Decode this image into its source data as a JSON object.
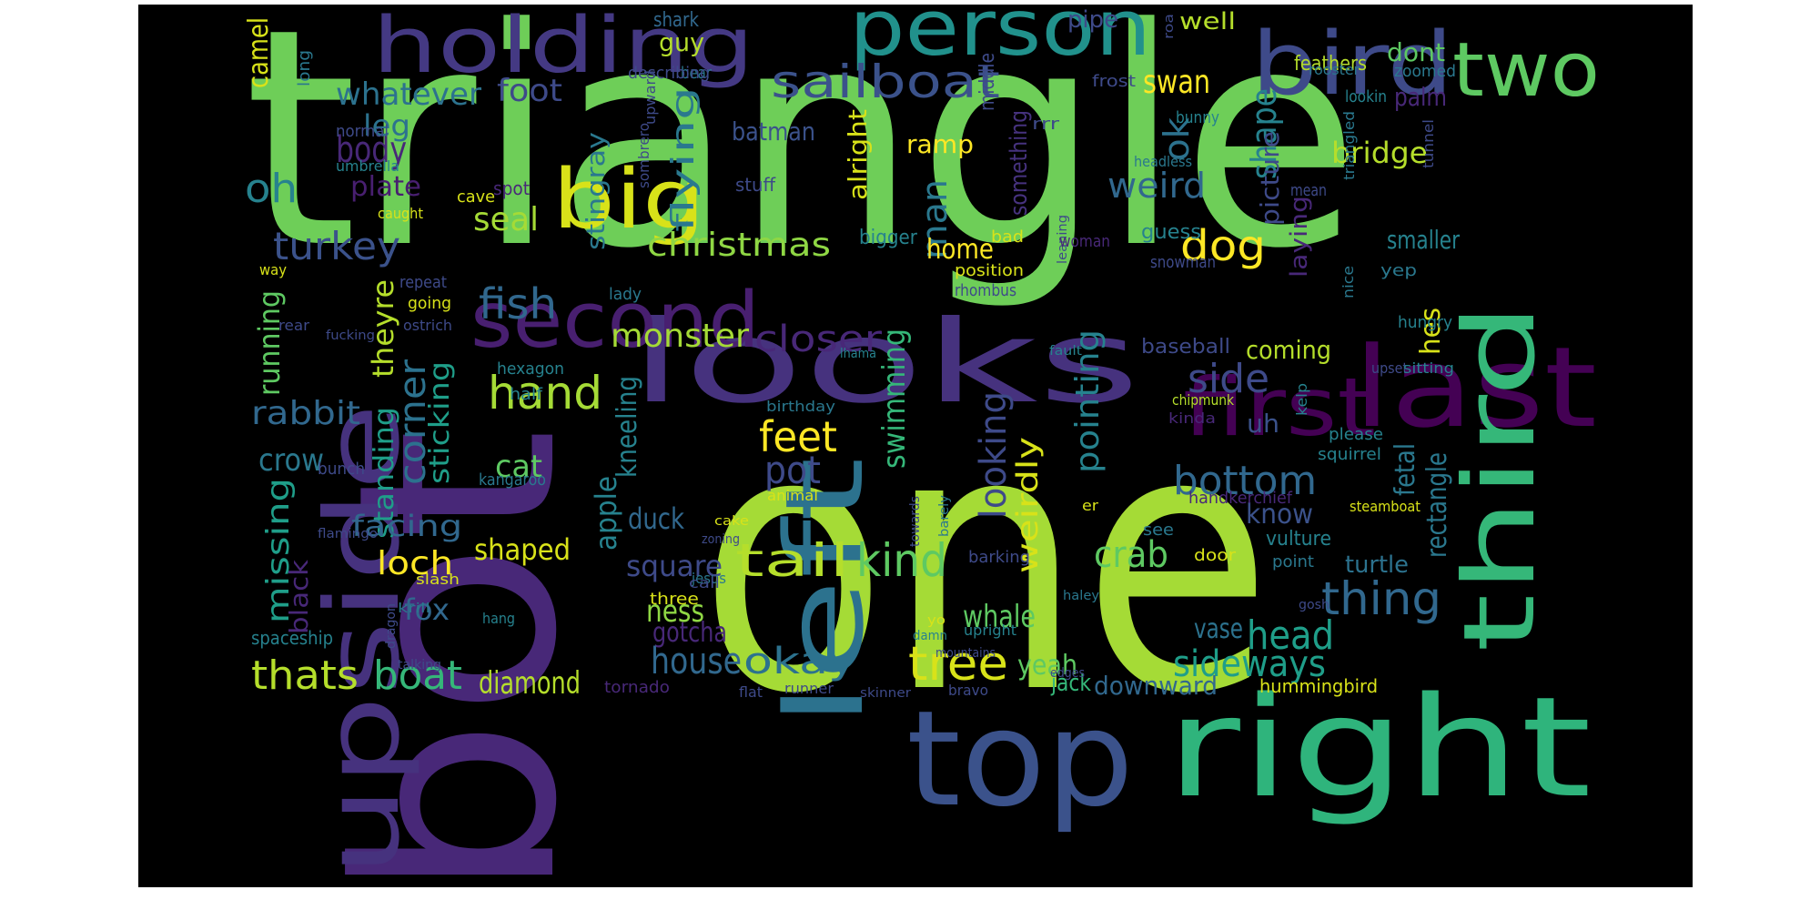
{
  "background": "#000000",
  "palette": {
    "v1": "#440154",
    "v2": "#482878",
    "v3": "#3e4a89",
    "v4": "#31688e",
    "v5": "#26828e",
    "v6": "#1f9e89",
    "v7": "#35b779",
    "v8": "#6ece58",
    "v9": "#b5de2b",
    "v10": "#fde725"
  },
  "words": [
    {
      "text": "triangle",
      "color": "#6ece58"
    },
    {
      "text": "one",
      "color": "#a5db36"
    },
    {
      "text": "bot",
      "color": "#482878"
    },
    {
      "text": "looks",
      "color": "#46327e"
    },
    {
      "text": "upside",
      "color": "#46327e"
    },
    {
      "text": "right",
      "color": "#2fb47c"
    },
    {
      "text": "top",
      "color": "#3b528b"
    },
    {
      "text": "holding",
      "color": "#443983"
    },
    {
      "text": "person",
      "color": "#21918c"
    },
    {
      "text": "bird",
      "color": "#3e4a89"
    },
    {
      "text": "two",
      "color": "#5ec962"
    },
    {
      "text": "big",
      "color": "#d8e219"
    },
    {
      "text": "left",
      "color": "#2c728e"
    },
    {
      "text": "second",
      "color": "#481f70"
    },
    {
      "text": "first",
      "color": "#440154"
    },
    {
      "text": "last",
      "color": "#440154"
    },
    {
      "text": "third",
      "color": "#35b779"
    },
    {
      "text": "sailboat",
      "color": "#3b528b"
    },
    {
      "text": "whatever",
      "color": "#2c728e"
    },
    {
      "text": "foot",
      "color": "#3e4a89"
    },
    {
      "text": "body",
      "color": "#482878"
    },
    {
      "text": "leg",
      "color": "#2c728e"
    },
    {
      "text": "oh",
      "color": "#26828e"
    },
    {
      "text": "plate",
      "color": "#481f70"
    },
    {
      "text": "turkey",
      "color": "#3b528b"
    },
    {
      "text": "seal",
      "color": "#a5db36"
    },
    {
      "text": "fish",
      "color": "#31688e"
    },
    {
      "text": "guy",
      "color": "#b5de2b"
    },
    {
      "text": "batman",
      "color": "#3b528b"
    },
    {
      "text": "flying",
      "color": "#2a788e"
    },
    {
      "text": "stingray",
      "color": "#2a788e"
    },
    {
      "text": "christmas",
      "color": "#8fd744"
    },
    {
      "text": "monster",
      "color": "#a5db36"
    },
    {
      "text": "closer",
      "color": "#482878"
    },
    {
      "text": "dog",
      "color": "#fde725"
    },
    {
      "text": "swan",
      "color": "#fde725"
    },
    {
      "text": "well",
      "color": "#b5de2b"
    },
    {
      "text": "dont",
      "color": "#5ec962"
    },
    {
      "text": "palm",
      "color": "#482878"
    },
    {
      "text": "ok",
      "color": "#2c728e"
    },
    {
      "text": "shape",
      "color": "#26828e"
    },
    {
      "text": "picture",
      "color": "#3e4a89"
    },
    {
      "text": "weird",
      "color": "#31688e"
    },
    {
      "text": "bridge",
      "color": "#b5de2b"
    },
    {
      "text": "ramp",
      "color": "#fde725"
    },
    {
      "text": "man",
      "color": "#2a788e"
    },
    {
      "text": "alright",
      "color": "#d8e219"
    },
    {
      "text": "something",
      "color": "#46327e"
    },
    {
      "text": "home",
      "color": "#fde725"
    },
    {
      "text": "hand",
      "color": "#a5db36"
    },
    {
      "text": "running",
      "color": "#5ec962"
    },
    {
      "text": "theyre",
      "color": "#b5de2b"
    },
    {
      "text": "rabbit",
      "color": "#31688e"
    },
    {
      "text": "corner",
      "color": "#2c728e"
    },
    {
      "text": "standing",
      "color": "#1f9e89"
    },
    {
      "text": "sticking",
      "color": "#1f9e89"
    },
    {
      "text": "crow",
      "color": "#2a788e"
    },
    {
      "text": "missing",
      "color": "#1f9e89"
    },
    {
      "text": "black",
      "color": "#482878"
    },
    {
      "text": "facing",
      "color": "#31688e"
    },
    {
      "text": "loch",
      "color": "#fde725"
    },
    {
      "text": "fox",
      "color": "#31688e"
    },
    {
      "text": "cat",
      "color": "#5ec962"
    },
    {
      "text": "feet",
      "color": "#fde725"
    },
    {
      "text": "pot",
      "color": "#3e4a89"
    },
    {
      "text": "apple",
      "color": "#26828e"
    },
    {
      "text": "kneeling",
      "color": "#26828e"
    },
    {
      "text": "duck",
      "color": "#31688e"
    },
    {
      "text": "swimming",
      "color": "#35b779"
    },
    {
      "text": "shaped",
      "color": "#d8e219"
    },
    {
      "text": "square",
      "color": "#3e4a89"
    },
    {
      "text": "tail",
      "color": "#b5de2b"
    },
    {
      "text": "kind",
      "color": "#5ec962"
    },
    {
      "text": "ness",
      "color": "#8fd744"
    },
    {
      "text": "gotcha",
      "color": "#482878"
    },
    {
      "text": "house",
      "color": "#31688e"
    },
    {
      "text": "okay",
      "color": "#2c728e"
    },
    {
      "text": "thats",
      "color": "#b5de2b"
    },
    {
      "text": "boat",
      "color": "#35b779"
    },
    {
      "text": "diamond",
      "color": "#b5de2b"
    },
    {
      "text": "tree",
      "color": "#d8e219"
    },
    {
      "text": "looking",
      "color": "#3e4a89"
    },
    {
      "text": "weirdly",
      "color": "#d8e219"
    },
    {
      "text": "pointing",
      "color": "#26828e"
    },
    {
      "text": "whale",
      "color": "#5ec962"
    },
    {
      "text": "yeah",
      "color": "#5ec962"
    },
    {
      "text": "crab",
      "color": "#5ec962"
    },
    {
      "text": "bottom",
      "color": "#31688e"
    },
    {
      "text": "side",
      "color": "#3e4a89"
    },
    {
      "text": "coming",
      "color": "#b5de2b"
    },
    {
      "text": "hes",
      "color": "#d8e219"
    },
    {
      "text": "laying",
      "color": "#482878"
    },
    {
      "text": "baseball",
      "color": "#3e4a89"
    },
    {
      "text": "smaller",
      "color": "#26828e"
    },
    {
      "text": "know",
      "color": "#3b528b"
    },
    {
      "text": "uh",
      "color": "#3b528b"
    },
    {
      "text": "rectangle",
      "color": "#2a788e"
    },
    {
      "text": "fetal",
      "color": "#2a788e"
    },
    {
      "text": "thing",
      "color": "#31688e"
    },
    {
      "text": "head",
      "color": "#1f9e89"
    },
    {
      "text": "sideways",
      "color": "#1f9e89"
    },
    {
      "text": "downward",
      "color": "#31688e"
    },
    {
      "text": "vase",
      "color": "#2c728e"
    },
    {
      "text": "turtle",
      "color": "#2c728e"
    },
    {
      "text": "jack",
      "color": "#35b779"
    },
    {
      "text": "camel",
      "color": "#d8e219"
    },
    {
      "text": "pipe",
      "color": "#3e4a89"
    },
    {
      "text": "feathers",
      "color": "#b5de2b"
    },
    {
      "text": "shark",
      "color": "#31688e"
    },
    {
      "text": "long",
      "color": "#2a788e"
    },
    {
      "text": "bear",
      "color": "#2a788e"
    },
    {
      "text": "describing",
      "color": "#3e4a89"
    },
    {
      "text": "middle",
      "color": "#3e4a89"
    },
    {
      "text": "frost",
      "color": "#3e4a89"
    },
    {
      "text": "rooster",
      "color": "#2a788e"
    },
    {
      "text": "lookin",
      "color": "#26828e"
    },
    {
      "text": "zoomed",
      "color": "#2a788e"
    },
    {
      "text": "normal",
      "color": "#3e4a89"
    },
    {
      "text": "umbrella",
      "color": "#26828e"
    },
    {
      "text": "upward",
      "color": "#3e4a89"
    },
    {
      "text": "sombrero",
      "color": "#3e4a89"
    },
    {
      "text": "bunny",
      "color": "#26828e"
    },
    {
      "text": "triangled",
      "color": "#2a788e"
    },
    {
      "text": "tunnel",
      "color": "#3e4a89"
    },
    {
      "text": "headless",
      "color": "#2a788e"
    },
    {
      "text": "mean",
      "color": "#3e4a89"
    },
    {
      "text": "stuff",
      "color": "#3e4a89"
    },
    {
      "text": "spot",
      "color": "#482878"
    },
    {
      "text": "cave",
      "color": "#d8e219"
    },
    {
      "text": "caught",
      "color": "#d8e219"
    },
    {
      "text": "leaning",
      "color": "#3e4a89"
    },
    {
      "text": "bad",
      "color": "#d8e219"
    },
    {
      "text": "woman",
      "color": "#482878"
    },
    {
      "text": "guess",
      "color": "#26828e"
    },
    {
      "text": "bigger",
      "color": "#26828e"
    },
    {
      "text": "position",
      "color": "#d8e219"
    },
    {
      "text": "rhombus",
      "color": "#3e4a89"
    },
    {
      "text": "snowman",
      "color": "#3e4a89"
    },
    {
      "text": "nice",
      "color": "#2a788e"
    },
    {
      "text": "yep",
      "color": "#2a788e"
    },
    {
      "text": "way",
      "color": "#d8e219"
    },
    {
      "text": "repeat",
      "color": "#3e4a89"
    },
    {
      "text": "going",
      "color": "#d8e219"
    },
    {
      "text": "lady",
      "color": "#2a788e"
    },
    {
      "text": "rear",
      "color": "#3e4a89"
    },
    {
      "text": "ostrich",
      "color": "#3e4a89"
    },
    {
      "text": "fucking",
      "color": "#3e4a89"
    },
    {
      "text": "lhama",
      "color": "#26828e"
    },
    {
      "text": "fault",
      "color": "#26828e"
    },
    {
      "text": "hungry",
      "color": "#26828e"
    },
    {
      "text": "upset",
      "color": "#3e4a89"
    },
    {
      "text": "sitting",
      "color": "#26828e"
    },
    {
      "text": "hexagon",
      "color": "#26828e"
    },
    {
      "text": "half",
      "color": "#26828e"
    },
    {
      "text": "birthday",
      "color": "#2a788e"
    },
    {
      "text": "chipmunk",
      "color": "#b5de2b"
    },
    {
      "text": "kinda",
      "color": "#482878"
    },
    {
      "text": "kelp",
      "color": "#26828e"
    },
    {
      "text": "please",
      "color": "#26828e"
    },
    {
      "text": "squirrel",
      "color": "#26828e"
    },
    {
      "text": "bunch",
      "color": "#3e4a89"
    },
    {
      "text": "kangaroo",
      "color": "#2a788e"
    },
    {
      "text": "animal",
      "color": "#d8e219"
    },
    {
      "text": "handkerchief",
      "color": "#482878"
    },
    {
      "text": "steamboat",
      "color": "#d8e219"
    },
    {
      "text": "flamingo",
      "color": "#3e4a89"
    },
    {
      "text": "cake",
      "color": "#d8e219"
    },
    {
      "text": "zoning",
      "color": "#3e4a89"
    },
    {
      "text": "towards",
      "color": "#3e4a89"
    },
    {
      "text": "barely",
      "color": "#2a788e"
    },
    {
      "text": "er",
      "color": "#d8e219"
    },
    {
      "text": "see",
      "color": "#2a788e"
    },
    {
      "text": "vulture",
      "color": "#26828e"
    },
    {
      "text": "jesus",
      "color": "#2a788e"
    },
    {
      "text": "barking",
      "color": "#3e4a89"
    },
    {
      "text": "door",
      "color": "#d8e219"
    },
    {
      "text": "point",
      "color": "#2a788e"
    },
    {
      "text": "slash",
      "color": "#d8e219"
    },
    {
      "text": "call",
      "color": "#3e4a89"
    },
    {
      "text": "three",
      "color": "#d8e219"
    },
    {
      "text": "krill",
      "color": "#2a788e"
    },
    {
      "text": "hang",
      "color": "#26828e"
    },
    {
      "text": "dragon",
      "color": "#3e4a89"
    },
    {
      "text": "spaceship",
      "color": "#26828e"
    },
    {
      "text": "talking",
      "color": "#3e4a89"
    },
    {
      "text": "haley",
      "color": "#2a788e"
    },
    {
      "text": "gosh",
      "color": "#3e4a89"
    },
    {
      "text": "yo",
      "color": "#d8e219"
    },
    {
      "text": "upright",
      "color": "#26828e"
    },
    {
      "text": "damn",
      "color": "#26828e"
    },
    {
      "text": "mountains",
      "color": "#3e4a89"
    },
    {
      "text": "edges",
      "color": "#3e4a89"
    },
    {
      "text": "tornado",
      "color": "#482878"
    },
    {
      "text": "flat",
      "color": "#3e4a89"
    },
    {
      "text": "runner",
      "color": "#3e4a89"
    },
    {
      "text": "skinner",
      "color": "#3e4a89"
    },
    {
      "text": "bravo",
      "color": "#3e4a89"
    },
    {
      "text": "hummingbird",
      "color": "#d8e219"
    },
    {
      "text": "rrr",
      "color": "#3e4a89"
    },
    {
      "text": "roa",
      "color": "#3e4a89"
    }
  ]
}
